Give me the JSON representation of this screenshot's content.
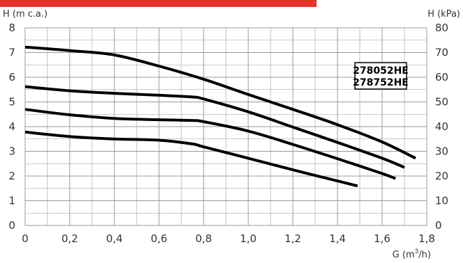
{
  "chart_data": {
    "type": "line",
    "title": "",
    "ylabel_left": "H (m c.a.)",
    "ylabel_right": "H (kPa)",
    "xlabel": {
      "prefix": "G (m",
      "sup": "3",
      "suffix": "/h)"
    },
    "xlim": [
      0,
      1.8
    ],
    "ylim": [
      0,
      8
    ],
    "ylim_right": [
      0,
      80
    ],
    "grid": true,
    "x_ticks": [
      0,
      0.2,
      0.4,
      0.6,
      0.8,
      1.0,
      1.2,
      1.4,
      1.6,
      1.8
    ],
    "x_tick_labels": [
      "0",
      "0,2",
      "0,4",
      "0,6",
      "0,8",
      "1,0",
      "1,2",
      "1,4",
      "1,6",
      "1,8"
    ],
    "y_ticks": [
      0,
      1,
      2,
      3,
      4,
      5,
      6,
      7,
      8
    ],
    "y_tick_labels": [
      "0",
      "1",
      "2",
      "3",
      "4",
      "5",
      "6",
      "7",
      "8"
    ],
    "y_right_tick_labels": [
      "0",
      "10",
      "20",
      "30",
      "40",
      "50",
      "60",
      "70",
      "80"
    ],
    "legend": [
      "278052HE",
      "278752HE"
    ],
    "legend_position": "top-right",
    "series": [
      {
        "x": [
          0,
          0.2,
          0.4,
          0.6,
          0.8,
          1.0,
          1.2,
          1.4,
          1.6,
          1.75
        ],
        "y": [
          7.22,
          7.08,
          6.9,
          6.45,
          5.92,
          5.3,
          4.7,
          4.08,
          3.38,
          2.72
        ]
      },
      {
        "x": [
          0,
          0.2,
          0.4,
          0.6,
          0.75,
          0.8,
          1.0,
          1.2,
          1.4,
          1.6,
          1.7
        ],
        "y": [
          5.62,
          5.45,
          5.35,
          5.27,
          5.2,
          5.12,
          4.6,
          3.98,
          3.36,
          2.72,
          2.35
        ]
      },
      {
        "x": [
          0,
          0.2,
          0.4,
          0.6,
          0.75,
          0.8,
          1.0,
          1.2,
          1.4,
          1.6,
          1.66
        ],
        "y": [
          4.7,
          4.48,
          4.33,
          4.28,
          4.25,
          4.2,
          3.82,
          3.28,
          2.7,
          2.1,
          1.9
        ]
      },
      {
        "x": [
          0,
          0.2,
          0.4,
          0.6,
          0.75,
          0.8,
          1.0,
          1.2,
          1.4,
          1.49
        ],
        "y": [
          3.78,
          3.6,
          3.5,
          3.45,
          3.3,
          3.18,
          2.72,
          2.25,
          1.8,
          1.6
        ]
      }
    ]
  },
  "colors": {
    "accent_bar": "#e8332d",
    "grid": "#999999",
    "curve": "#000000",
    "text": "#333333"
  }
}
